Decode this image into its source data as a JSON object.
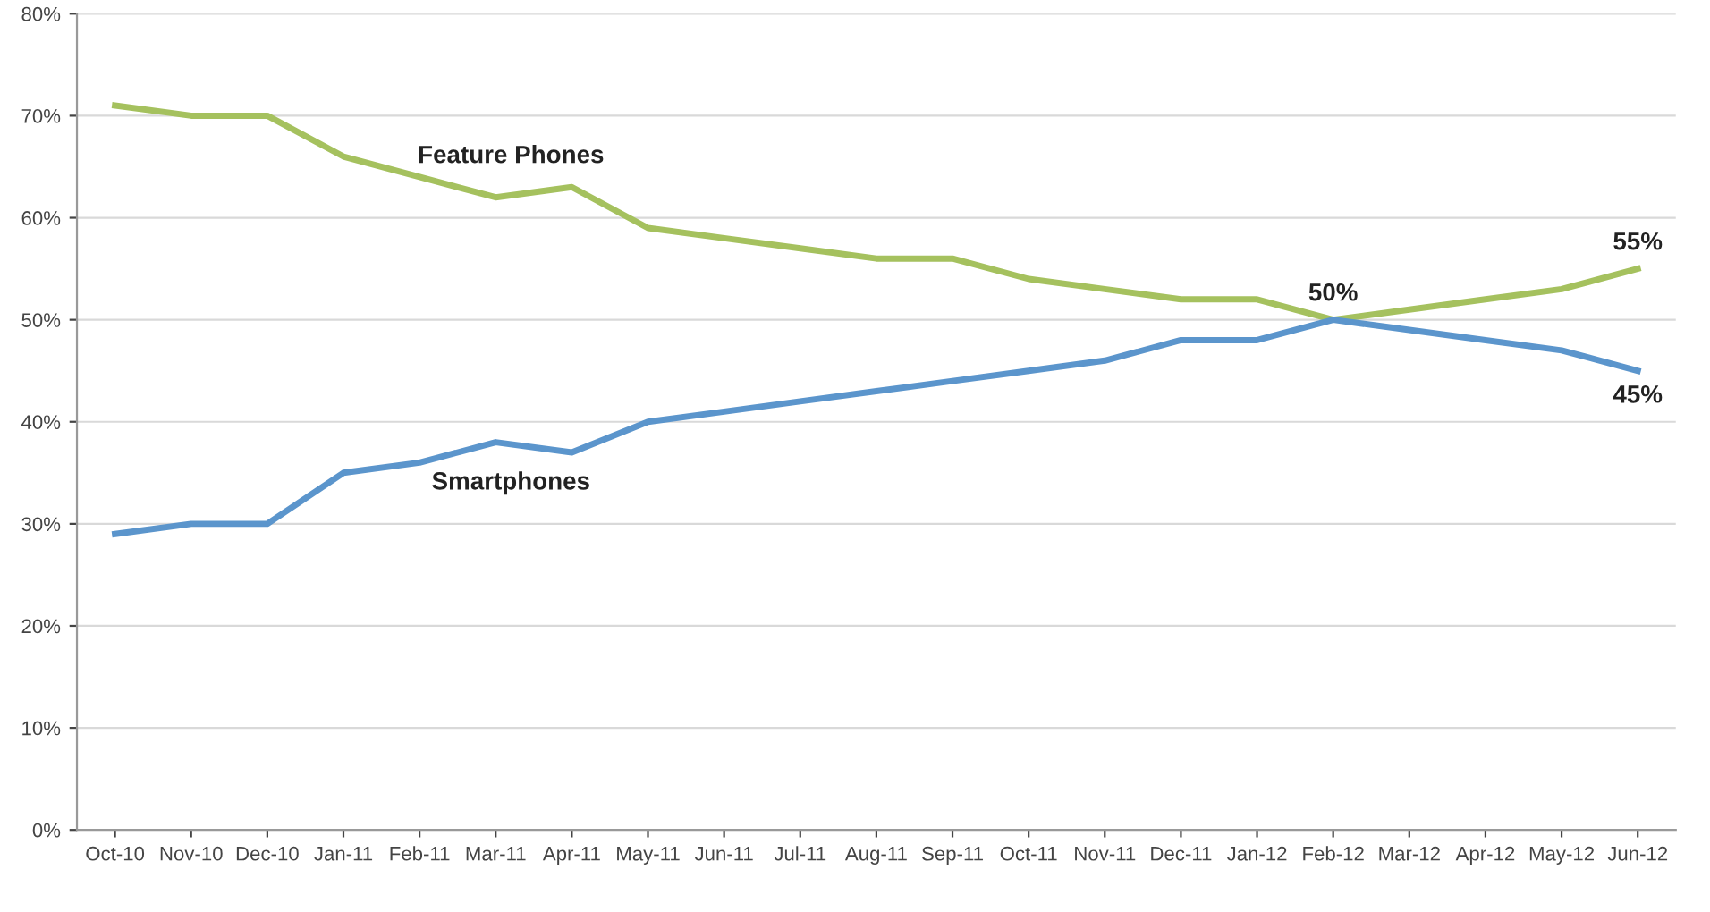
{
  "chart_data": {
    "type": "line",
    "categories": [
      "Oct-10",
      "Nov-10",
      "Dec-10",
      "Jan-11",
      "Feb-11",
      "Mar-11",
      "Apr-11",
      "May-11",
      "Jun-11",
      "Jul-11",
      "Aug-11",
      "Sep-11",
      "Oct-11",
      "Nov-11",
      "Dec-11",
      "Jan-12",
      "Feb-12",
      "Mar-12",
      "Apr-12",
      "May-12",
      "Jun-12"
    ],
    "series": [
      {
        "name": "Feature Phones",
        "color": "#a5c15e",
        "values": [
          71,
          70,
          70,
          66,
          64,
          62,
          63,
          59,
          58,
          57,
          56,
          56,
          54,
          53,
          52,
          52,
          50,
          51,
          52,
          53,
          55
        ],
        "value_labels": [
          null,
          null,
          null,
          null,
          null,
          null,
          null,
          null,
          null,
          null,
          null,
          null,
          null,
          null,
          null,
          null,
          null,
          null,
          null,
          null,
          "55%"
        ]
      },
      {
        "name": "Smartphones",
        "color": "#5b95cc",
        "values": [
          29,
          30,
          30,
          35,
          36,
          38,
          37,
          40,
          41,
          42,
          43,
          44,
          45,
          46,
          48,
          48,
          50,
          49,
          48,
          47,
          45
        ],
        "value_labels": [
          null,
          null,
          null,
          null,
          null,
          null,
          null,
          null,
          null,
          null,
          null,
          null,
          null,
          null,
          null,
          null,
          "50%",
          null,
          null,
          null,
          "45%"
        ]
      }
    ],
    "ylim": [
      0,
      80
    ],
    "yticks": [
      {
        "value": 0,
        "label": "0%"
      },
      {
        "value": 10,
        "label": "10%"
      },
      {
        "value": 20,
        "label": "20%"
      },
      {
        "value": 30,
        "label": "30%"
      },
      {
        "value": 40,
        "label": "40%"
      },
      {
        "value": 50,
        "label": "50%"
      },
      {
        "value": 60,
        "label": "60%"
      },
      {
        "value": 70,
        "label": "70%"
      },
      {
        "value": 80,
        "label": "80%"
      }
    ],
    "grid": "y",
    "legend": false,
    "marker": "none",
    "line_style": "solid"
  }
}
